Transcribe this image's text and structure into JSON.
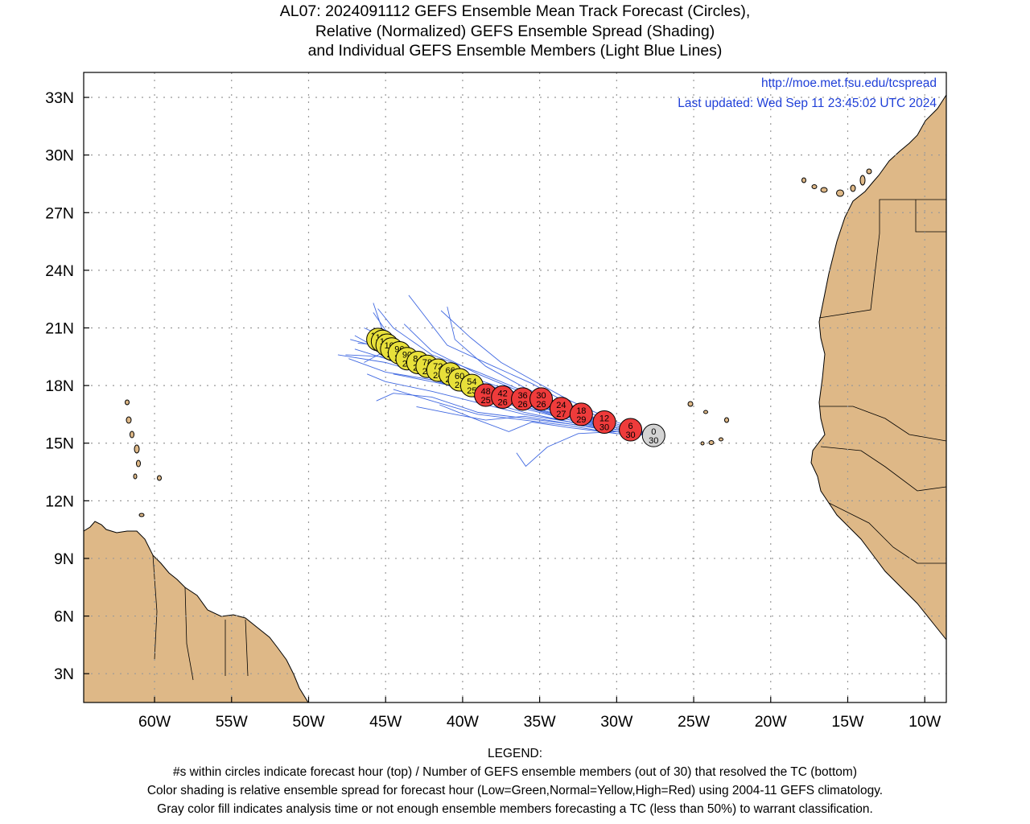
{
  "title": {
    "line1": "AL07: 2024091112 GEFS Ensemble Mean Track Forecast (Circles),",
    "line2": "Relative (Normalized) GEFS Ensemble Spread (Shading)",
    "line3": "and Individual GEFS Ensemble Members (Light Blue Lines)"
  },
  "stamp": {
    "url": "http://moe.met.fsu.edu/tcspread",
    "updated": "Last updated: Wed Sep 11 23:45:02 UTC 2024"
  },
  "legend": {
    "heading": "LEGEND:",
    "line1": "#s within circles indicate forecast hour (top) / Number of GEFS ensemble members (out of 30) that resolved the TC (bottom)",
    "line2": "Color shading is relative ensemble spread for forecast hour (Low=Green,Normal=Yellow,High=Red) using 2004-11 GEFS climatology.",
    "line3": "Gray color fill indicates analysis time or not enough ensemble members forecasting a TC (less than 50%) to warrant classification."
  },
  "colors": {
    "land": "#deb887",
    "ocean": "#ffffff",
    "member_tracks": "#4169e1",
    "spread_high": "#ee3b3b",
    "spread_normal": "#e8e03a",
    "analysis_gray": "#d3d3d3",
    "grid": "#999999",
    "stamp_text": "#1f3fd8"
  },
  "chart_data": {
    "type": "scatter",
    "xlim": [
      -64.6,
      -8.6
    ],
    "ylim": [
      1.5,
      34.3
    ],
    "x_ticks": [
      {
        "value": -60,
        "label": "60W"
      },
      {
        "value": -55,
        "label": "55W"
      },
      {
        "value": -50,
        "label": "50W"
      },
      {
        "value": -45,
        "label": "45W"
      },
      {
        "value": -40,
        "label": "40W"
      },
      {
        "value": -35,
        "label": "35W"
      },
      {
        "value": -30,
        "label": "30W"
      },
      {
        "value": -25,
        "label": "25W"
      },
      {
        "value": -20,
        "label": "20W"
      },
      {
        "value": -15,
        "label": "15W"
      },
      {
        "value": -10,
        "label": "10W"
      }
    ],
    "y_ticks": [
      {
        "value": 3,
        "label": "3N"
      },
      {
        "value": 6,
        "label": "6N"
      },
      {
        "value": 9,
        "label": "9N"
      },
      {
        "value": 12,
        "label": "12N"
      },
      {
        "value": 15,
        "label": "15N"
      },
      {
        "value": 18,
        "label": "18N"
      },
      {
        "value": 21,
        "label": "21N"
      },
      {
        "value": 24,
        "label": "24N"
      },
      {
        "value": 27,
        "label": "27N"
      },
      {
        "value": 30,
        "label": "30N"
      },
      {
        "value": 33,
        "label": "33N"
      }
    ],
    "grid": true,
    "mean_track": [
      {
        "lon": -27.6,
        "lat": 15.4,
        "hour": "0",
        "members": "30",
        "spread": "gray"
      },
      {
        "lon": -29.1,
        "lat": 15.7,
        "hour": "6",
        "members": "30",
        "spread": "high"
      },
      {
        "lon": -30.8,
        "lat": 16.1,
        "hour": "12",
        "members": "30",
        "spread": "high"
      },
      {
        "lon": -32.3,
        "lat": 16.5,
        "hour": "18",
        "members": "29",
        "spread": "high"
      },
      {
        "lon": -33.6,
        "lat": 16.8,
        "hour": "24",
        "members": "27",
        "spread": "high"
      },
      {
        "lon": -34.9,
        "lat": 17.3,
        "hour": "30",
        "members": "26",
        "spread": "high"
      },
      {
        "lon": -36.1,
        "lat": 17.3,
        "hour": "36",
        "members": "26",
        "spread": "high"
      },
      {
        "lon": -37.4,
        "lat": 17.4,
        "hour": "42",
        "members": "26",
        "spread": "high"
      },
      {
        "lon": -38.5,
        "lat": 17.5,
        "hour": "48",
        "members": "25",
        "spread": "high"
      },
      {
        "lon": -39.4,
        "lat": 18.0,
        "hour": "54",
        "members": "25",
        "spread": "normal"
      },
      {
        "lon": -40.2,
        "lat": 18.3,
        "hour": "60",
        "members": "24",
        "spread": "normal"
      },
      {
        "lon": -40.8,
        "lat": 18.6,
        "hour": "66",
        "members": "24",
        "spread": "normal"
      },
      {
        "lon": -41.6,
        "lat": 18.8,
        "hour": "72",
        "members": "24",
        "spread": "normal"
      },
      {
        "lon": -42.3,
        "lat": 19.0,
        "hour": "78",
        "members": "24",
        "spread": "normal"
      },
      {
        "lon": -42.9,
        "lat": 19.2,
        "hour": "84",
        "members": "24",
        "spread": "normal"
      },
      {
        "lon": -43.6,
        "lat": 19.4,
        "hour": "90",
        "members": "24",
        "spread": "normal"
      },
      {
        "lon": -44.1,
        "lat": 19.7,
        "hour": "96",
        "members": "23",
        "spread": "normal"
      },
      {
        "lon": -44.6,
        "lat": 19.9,
        "hour": "102",
        "members": "23",
        "spread": "normal"
      },
      {
        "lon": -44.9,
        "lat": 20.1,
        "hour": "108",
        "members": "23",
        "spread": "normal"
      },
      {
        "lon": -45.2,
        "lat": 20.3,
        "hour": "114",
        "members": "23",
        "spread": "normal"
      },
      {
        "lon": -45.5,
        "lat": 20.4,
        "hour": "120",
        "members": "23",
        "spread": "normal"
      }
    ],
    "member_tracks": [
      [
        [
          -27.6,
          15.4
        ],
        [
          -30,
          15.7
        ],
        [
          -33,
          16.3
        ],
        [
          -36,
          17.0
        ],
        [
          -39,
          17.8
        ],
        [
          -42,
          18.7
        ],
        [
          -45,
          19.5
        ],
        [
          -47.6,
          19.6
        ]
      ],
      [
        [
          -27.6,
          15.4
        ],
        [
          -30,
          15.8
        ],
        [
          -33,
          16.6
        ],
        [
          -36,
          17.5
        ],
        [
          -39,
          18.3
        ],
        [
          -42,
          19.3
        ],
        [
          -44.5,
          20.3
        ],
        [
          -45.8,
          21.8
        ]
      ],
      [
        [
          -27.6,
          15.4
        ],
        [
          -30,
          15.6
        ],
        [
          -33,
          16.1
        ],
        [
          -36,
          16.6
        ],
        [
          -39,
          17.3
        ],
        [
          -42,
          18.4
        ],
        [
          -45,
          19.4
        ],
        [
          -47.0,
          19.9
        ]
      ],
      [
        [
          -27.6,
          15.4
        ],
        [
          -30,
          15.5
        ],
        [
          -33,
          15.8
        ],
        [
          -35.5,
          16.1
        ],
        [
          -37,
          15.6
        ],
        [
          -39,
          16.2
        ],
        [
          -41.5,
          17.0
        ]
      ],
      [
        [
          -27.6,
          15.4
        ],
        [
          -30,
          15.6
        ],
        [
          -32.5,
          15.5
        ],
        [
          -34.5,
          14.8
        ],
        [
          -35.9,
          13.8
        ],
        [
          -36.5,
          14.5
        ]
      ],
      [
        [
          -27.6,
          15.4
        ],
        [
          -30,
          15.9
        ],
        [
          -33,
          16.8
        ],
        [
          -36,
          17.9
        ],
        [
          -38.5,
          19.0
        ],
        [
          -40.5,
          20.4
        ],
        [
          -41.0,
          22.1
        ]
      ],
      [
        [
          -27.6,
          15.4
        ],
        [
          -30,
          16.0
        ],
        [
          -33,
          17.0
        ],
        [
          -35.5,
          18.1
        ],
        [
          -38,
          19.0
        ],
        [
          -41,
          20.1
        ],
        [
          -43.5,
          22.7
        ]
      ],
      [
        [
          -27.6,
          15.4
        ],
        [
          -30,
          15.7
        ],
        [
          -33,
          16.4
        ],
        [
          -36,
          17.2
        ],
        [
          -39,
          17.9
        ],
        [
          -42,
          18.9
        ],
        [
          -45,
          20.1
        ],
        [
          -46.8,
          20.2
        ]
      ],
      [
        [
          -27.6,
          15.4
        ],
        [
          -30,
          15.6
        ],
        [
          -33,
          16.0
        ],
        [
          -36,
          16.3
        ],
        [
          -39,
          16.6
        ],
        [
          -42,
          17.4
        ],
        [
          -44.5,
          17.6
        ],
        [
          -45.6,
          17.2
        ]
      ],
      [
        [
          -27.6,
          15.4
        ],
        [
          -30,
          15.8
        ],
        [
          -33,
          16.4
        ],
        [
          -36,
          17.3
        ],
        [
          -39,
          17.8
        ],
        [
          -42,
          18.5
        ],
        [
          -45,
          19.8
        ],
        [
          -46.4,
          19.2
        ]
      ],
      [
        [
          -27.6,
          15.4
        ],
        [
          -30,
          15.9
        ],
        [
          -33,
          16.7
        ],
        [
          -36,
          17.7
        ],
        [
          -39,
          18.7
        ],
        [
          -42,
          19.6
        ],
        [
          -44.5,
          21.0
        ],
        [
          -45.5,
          22.0
        ]
      ],
      [
        [
          -27.6,
          15.4
        ],
        [
          -30,
          15.7
        ],
        [
          -33,
          16.2
        ],
        [
          -36,
          16.8
        ],
        [
          -39,
          17.5
        ],
        [
          -42,
          18.5
        ],
        [
          -45,
          19.2
        ],
        [
          -48.1,
          19.6
        ]
      ],
      [
        [
          -27.6,
          15.4
        ],
        [
          -30,
          15.5
        ],
        [
          -33,
          15.9
        ],
        [
          -36,
          16.2
        ],
        [
          -39,
          16.5
        ],
        [
          -42,
          17.2
        ],
        [
          -44.5,
          17.8
        ]
      ],
      [
        [
          -27.6,
          15.4
        ],
        [
          -30,
          15.7
        ],
        [
          -33,
          16.5
        ],
        [
          -36,
          17.2
        ],
        [
          -39,
          18.1
        ],
        [
          -42,
          19.0
        ],
        [
          -45,
          20.5
        ],
        [
          -46.4,
          21.0
        ]
      ],
      [
        [
          -27.6,
          15.4
        ],
        [
          -30,
          16.1
        ],
        [
          -33,
          17.2
        ],
        [
          -35.5,
          18.3
        ],
        [
          -37.5,
          19.2
        ],
        [
          -39.5,
          20.5
        ],
        [
          -41.4,
          21.9
        ]
      ],
      [
        [
          -27.6,
          15.4
        ],
        [
          -30,
          15.6
        ],
        [
          -33,
          16.0
        ],
        [
          -36,
          16.4
        ],
        [
          -38.5,
          16.2
        ],
        [
          -40.5,
          16.5
        ],
        [
          -43.0,
          16.9
        ]
      ],
      [
        [
          -27.6,
          15.4
        ],
        [
          -30,
          15.7
        ],
        [
          -33,
          16.3
        ],
        [
          -36,
          16.9
        ],
        [
          -39,
          17.6
        ],
        [
          -42,
          18.6
        ],
        [
          -45,
          19.7
        ],
        [
          -47.0,
          20.6
        ]
      ],
      [
        [
          -27.6,
          15.4
        ],
        [
          -30,
          15.8
        ],
        [
          -33,
          16.5
        ],
        [
          -36,
          17.4
        ],
        [
          -39,
          18.2
        ],
        [
          -42,
          19.1
        ],
        [
          -45,
          20.4
        ],
        [
          -45.8,
          22.3
        ]
      ],
      [
        [
          -27.6,
          15.4
        ],
        [
          -30,
          15.6
        ],
        [
          -33,
          16.2
        ],
        [
          -36,
          16.9
        ],
        [
          -39,
          17.5
        ],
        [
          -42,
          18.3
        ],
        [
          -45,
          18.7
        ],
        [
          -47.4,
          19.4
        ]
      ],
      [
        [
          -27.6,
          15.4
        ],
        [
          -30,
          15.7
        ],
        [
          -33,
          16.4
        ],
        [
          -36,
          17.1
        ],
        [
          -39,
          17.7
        ],
        [
          -42,
          18.2
        ],
        [
          -44.5,
          18.6
        ]
      ],
      [
        [
          -27.6,
          15.4
        ],
        [
          -30,
          15.8
        ],
        [
          -33,
          16.7
        ],
        [
          -36,
          17.6
        ],
        [
          -39,
          18.6
        ],
        [
          -42,
          19.8
        ],
        [
          -43.8,
          21.2
        ]
      ],
      [
        [
          -27.6,
          15.4
        ],
        [
          -30,
          15.6
        ],
        [
          -33,
          16.1
        ],
        [
          -36,
          16.5
        ],
        [
          -39,
          17.1
        ],
        [
          -42,
          17.7
        ],
        [
          -45,
          18.2
        ],
        [
          -46.2,
          18.6
        ]
      ],
      [
        [
          -27.6,
          15.4
        ],
        [
          -30,
          15.7
        ],
        [
          -33,
          16.3
        ],
        [
          -36,
          17.0
        ],
        [
          -39,
          17.9
        ],
        [
          -42,
          18.9
        ],
        [
          -45,
          19.9
        ],
        [
          -47.3,
          20.4
        ]
      ]
    ]
  }
}
